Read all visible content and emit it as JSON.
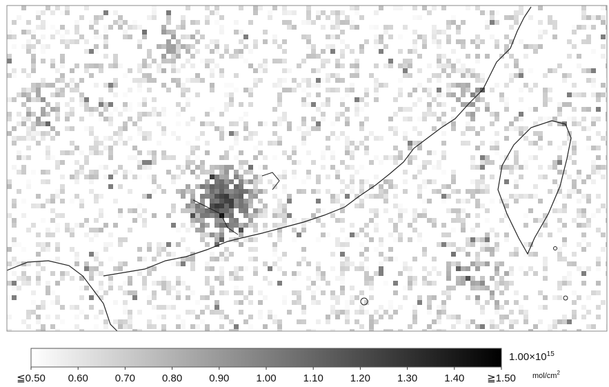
{
  "colorbar": {
    "range": [
      0.5,
      1.5
    ],
    "ticks": [
      {
        "value": 0.5,
        "label": "≦0.50"
      },
      {
        "value": 0.6,
        "label": "0.60"
      },
      {
        "value": 0.7,
        "label": "0.70"
      },
      {
        "value": 0.8,
        "label": "0.80"
      },
      {
        "value": 0.9,
        "label": "0.90"
      },
      {
        "value": 1.0,
        "label": "1.00"
      },
      {
        "value": 1.1,
        "label": "1.10"
      },
      {
        "value": 1.2,
        "label": "1.20"
      },
      {
        "value": 1.3,
        "label": "1.30"
      },
      {
        "value": 1.4,
        "label": "1.40"
      },
      {
        "value": 1.5,
        "label": "≧1.50"
      }
    ],
    "scale": "1.00×10",
    "scale_exp": "15",
    "unit": "mol/cm",
    "unit_exp": "2"
  }
}
